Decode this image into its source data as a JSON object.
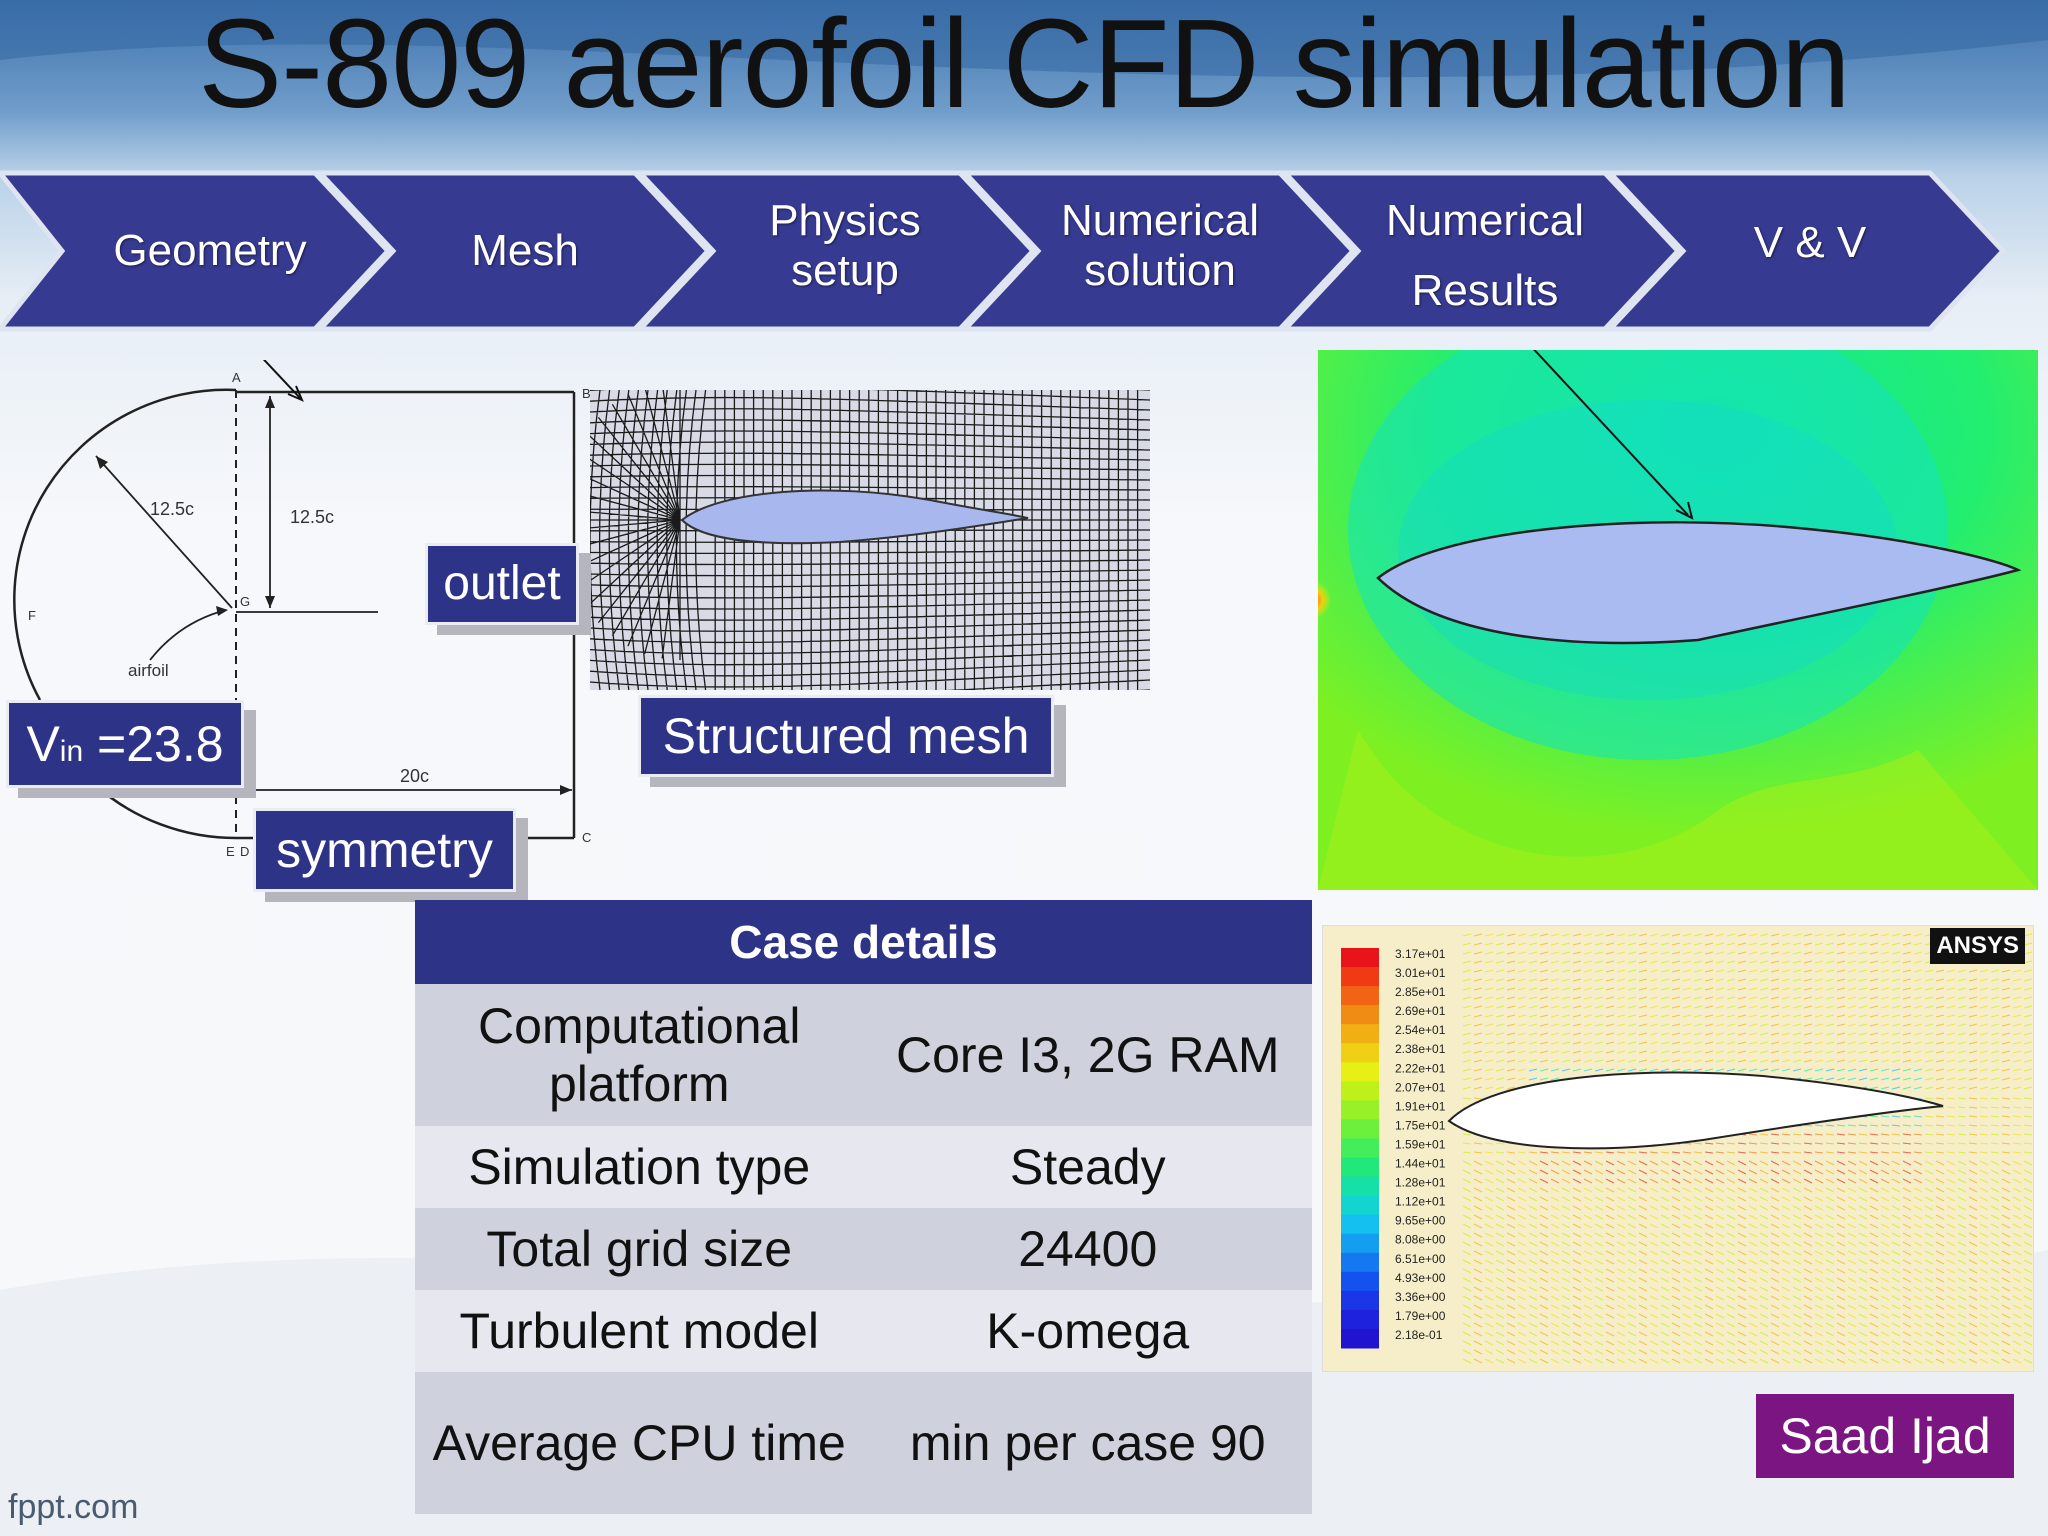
{
  "title": "S-809 aerofoil CFD simulation",
  "process_steps": [
    {
      "label_lines": [
        "Geometry"
      ]
    },
    {
      "label_lines": [
        "Mesh"
      ]
    },
    {
      "label_lines": [
        "Physics",
        "setup"
      ]
    },
    {
      "label_lines": [
        "Numerical",
        "solution"
      ]
    },
    {
      "label_lines": [
        "Numerical",
        "Results"
      ]
    },
    {
      "label_lines": [
        "V & V"
      ]
    }
  ],
  "geometry": {
    "radius_label": "12.5c",
    "height_label": "12.5c",
    "length_label": "20c",
    "airfoil_label": "airfoil",
    "point_labels": [
      "A",
      "B",
      "C",
      "D",
      "E",
      "F",
      "G"
    ],
    "outlet_label": "outlet",
    "symmetry_label": "symmetry",
    "velocity": {
      "symbol": "V",
      "subscript": "in",
      "value": " =23.8"
    }
  },
  "mesh": {
    "caption": "Structured mesh"
  },
  "vector_plot": {
    "brand": "ANSYS",
    "legend_values": [
      "3.17e+01",
      "3.01e+01",
      "2.85e+01",
      "2.69e+01",
      "2.54e+01",
      "2.38e+01",
      "2.22e+01",
      "2.07e+01",
      "1.91e+01",
      "1.75e+01",
      "1.59e+01",
      "1.44e+01",
      "1.28e+01",
      "1.12e+01",
      "9.65e+00",
      "8.08e+00",
      "6.51e+00",
      "4.93e+00",
      "3.36e+00",
      "1.79e+00",
      "2.18e-01"
    ]
  },
  "case_details": {
    "header": "Case details",
    "rows": [
      {
        "label": "Computational platform",
        "value": "Core I3,  2G RAM"
      },
      {
        "label": "Simulation type",
        "value": "Steady"
      },
      {
        "label": "Total grid size",
        "value": "24400"
      },
      {
        "label": "Turbulent model",
        "value": "K-omega"
      },
      {
        "label": "Average CPU time",
        "value": "min per case 90"
      }
    ]
  },
  "footer": "fppt.com",
  "author": "Saad Ijad",
  "colors": {
    "navy": "#2d3487",
    "purple": "#7b1582"
  }
}
